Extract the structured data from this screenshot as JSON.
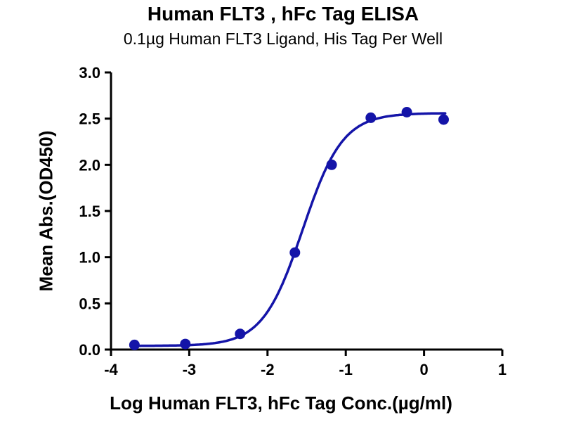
{
  "chart_data": {
    "type": "scatter",
    "title": "Human FLT3 , hFc Tag ELISA",
    "subtitle": "0.1µg Human FLT3 Ligand, His Tag Per Well",
    "xlabel": "Log Human FLT3, hFc Tag Conc.(µg/ml)",
    "ylabel": "Mean Abs.(OD450)",
    "xlim": [
      -4,
      1
    ],
    "ylim": [
      0,
      3
    ],
    "xticks": [
      -4,
      -3,
      -2,
      -1,
      0,
      1
    ],
    "xtick_labels": [
      "-4",
      "-3",
      "-2",
      "-1",
      "0",
      "1"
    ],
    "yticks": [
      0,
      0.5,
      1,
      1.5,
      2,
      2.5,
      3
    ],
    "ytick_labels": [
      "0.0",
      "0.5",
      "1.0",
      "1.5",
      "2.0",
      "2.5",
      "3.0"
    ],
    "grid": false,
    "legend": "none",
    "series": [
      {
        "name": "Human FLT3, hFc Tag",
        "x": [
          -3.7,
          -3.05,
          -2.35,
          -1.65,
          -1.18,
          -0.68,
          -0.22,
          0.25
        ],
        "y": [
          0.05,
          0.06,
          0.17,
          1.05,
          2.0,
          2.51,
          2.57,
          2.49
        ]
      }
    ],
    "fit": {
      "model": "4PL sigmoidal",
      "bottom": 0.04,
      "top": 2.56,
      "logEC50": -1.55,
      "hillslope": 1.7,
      "x_start": -3.75,
      "x_end": 0.28
    },
    "marker_color": "#1414a8",
    "line_color": "#1414a8",
    "axis_color": "#000000"
  }
}
